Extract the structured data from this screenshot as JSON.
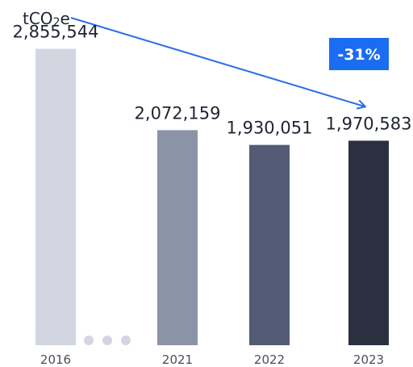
{
  "chart_data": {
    "type": "bar",
    "unit": "tCO2e",
    "unit_main": "tCO",
    "unit_sub": "2",
    "unit_tail": "e",
    "categories": [
      "2016",
      "2021",
      "2022",
      "2023"
    ],
    "values": [
      2855544,
      2072159,
      1930051,
      1970583
    ],
    "value_labels": [
      "2,855,544",
      "2,072,159",
      "1,930,051",
      "1,970,583"
    ],
    "bar_colors": [
      "#d3d6e0",
      "#8b93a6",
      "#535c74",
      "#2a3040"
    ],
    "ylim": [
      0,
      3000000
    ],
    "axis_break": true,
    "change_badge": {
      "label": "-31%",
      "color": "#1a6cf0"
    },
    "trend_arrow_color": "#2a6fe8",
    "grid": false,
    "legend": "none"
  }
}
